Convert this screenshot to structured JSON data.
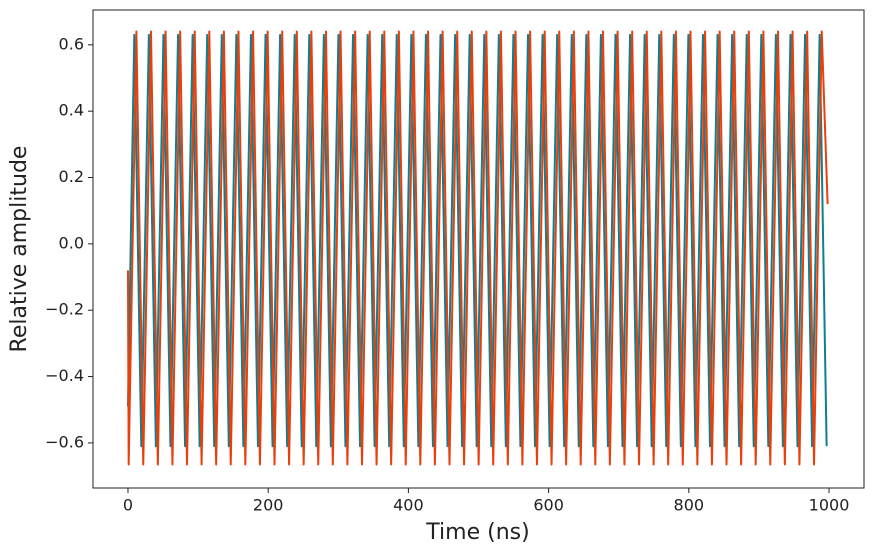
{
  "chart_data": {
    "type": "line",
    "xlabel": "Time (ns)",
    "ylabel": "Relative amplitude",
    "xlim": [
      -49.9,
      1049.9
    ],
    "ylim": [
      -0.736,
      0.705
    ],
    "xticks": [
      0,
      200,
      400,
      600,
      800,
      1000
    ],
    "yticks": [
      {
        "value": -0.6,
        "label": "−0.6"
      },
      {
        "value": -0.4,
        "label": "−0.4"
      },
      {
        "value": -0.2,
        "label": "−0.2"
      },
      {
        "value": 0,
        "label": "0.0"
      },
      {
        "value": 0.2,
        "label": "0.2"
      },
      {
        "value": 0.4,
        "label": "0.4"
      },
      {
        "value": 0.6,
        "label": "0.6"
      }
    ],
    "grid": false,
    "series": [
      {
        "color": "#0e7f93",
        "x": [
          0,
          9,
          19,
          29.8,
          39.8,
          50.6,
          60.6,
          71.4,
          81.4,
          92.2,
          102.2,
          113,
          123,
          133.8,
          143.8,
          154.6,
          164.6,
          175.4,
          185.4,
          196.2,
          206.2,
          217,
          227,
          237.8,
          247.8,
          258.6,
          268.6,
          279.4,
          289.4,
          300.2,
          310.2,
          321,
          331,
          341.8,
          351.8,
          362.6,
          372.6,
          383.4,
          393.4,
          404.2,
          414.2,
          425,
          435,
          445.8,
          455.8,
          466.6,
          476.6,
          487.4,
          497.4,
          508.2,
          518.2,
          529,
          539,
          549.8,
          559.8,
          570.6,
          580.6,
          591.4,
          601.4,
          612.2,
          622.2,
          633,
          643,
          653.8,
          663.8,
          674.6,
          684.6,
          695.4,
          705.4,
          716.2,
          726.2,
          737,
          747,
          757.8,
          767.8,
          778.6,
          788.6,
          799.4,
          809.4,
          820.2,
          830.2,
          841,
          851,
          861.8,
          871.8,
          882.6,
          892.6,
          903.4,
          913.4,
          924.2,
          934.2,
          945,
          955,
          965.8,
          975.8,
          986.6,
          996.6
        ],
        "values": [
          -0.49,
          0.63,
          -0.61,
          0.63,
          -0.61,
          0.63,
          -0.61,
          0.63,
          -0.61,
          0.63,
          -0.61,
          0.63,
          -0.61,
          0.63,
          -0.61,
          0.63,
          -0.61,
          0.63,
          -0.61,
          0.63,
          -0.61,
          0.63,
          -0.61,
          0.63,
          -0.61,
          0.63,
          -0.61,
          0.63,
          -0.61,
          0.63,
          -0.61,
          0.63,
          -0.61,
          0.63,
          -0.61,
          0.63,
          -0.61,
          0.63,
          -0.61,
          0.63,
          -0.61,
          0.63,
          -0.61,
          0.63,
          -0.61,
          0.63,
          -0.61,
          0.63,
          -0.61,
          0.63,
          -0.61,
          0.63,
          -0.61,
          0.63,
          -0.61,
          0.63,
          -0.61,
          0.63,
          -0.61,
          0.63,
          -0.61,
          0.63,
          -0.61,
          0.63,
          -0.61,
          0.63,
          -0.61,
          0.63,
          -0.61,
          0.63,
          -0.61,
          0.63,
          -0.61,
          0.63,
          -0.61,
          0.63,
          -0.61,
          0.63,
          -0.61,
          0.63,
          -0.61,
          0.63,
          -0.61,
          0.63,
          -0.61,
          0.63,
          -0.61,
          0.63,
          -0.61,
          0.63,
          -0.61,
          0.63,
          -0.61,
          0.63,
          -0.61,
          0.63,
          -0.61
        ]
      },
      {
        "color": "#e8400c",
        "x": [
          0,
          1,
          12,
          21.8,
          32.8,
          42.6,
          53.6,
          63.4,
          74.4,
          84.2,
          95.2,
          105,
          116,
          125.8,
          136.8,
          146.6,
          157.6,
          167.4,
          178.4,
          188.2,
          199.2,
          209,
          220,
          229.8,
          240.8,
          250.6,
          261.6,
          271.4,
          282.4,
          292.2,
          303.2,
          313,
          324,
          333.8,
          344.8,
          354.6,
          365.6,
          375.4,
          386.4,
          396.2,
          407.2,
          417,
          428,
          437.8,
          448.8,
          458.6,
          469.6,
          479.4,
          490.4,
          500.2,
          511.2,
          521,
          532,
          541.8,
          552.8,
          562.6,
          573.6,
          583.4,
          594.4,
          604.2,
          615.2,
          625,
          636,
          645.8,
          656.8,
          666.6,
          677.6,
          687.4,
          698.4,
          708.2,
          719.2,
          729,
          740,
          749.8,
          760.8,
          770.6,
          781.6,
          791.4,
          802.4,
          812.2,
          823.2,
          833,
          844,
          853.8,
          864.8,
          874.6,
          885.6,
          895.4,
          906.4,
          916.2,
          927.2,
          937,
          948,
          957.8,
          968.8,
          978.6,
          989.6,
          998
        ],
        "values": [
          -0.08,
          -0.665,
          0.64,
          -0.665,
          0.64,
          -0.665,
          0.64,
          -0.665,
          0.64,
          -0.665,
          0.64,
          -0.665,
          0.64,
          -0.665,
          0.64,
          -0.665,
          0.64,
          -0.665,
          0.64,
          -0.665,
          0.64,
          -0.665,
          0.64,
          -0.665,
          0.64,
          -0.665,
          0.64,
          -0.665,
          0.64,
          -0.665,
          0.64,
          -0.665,
          0.64,
          -0.665,
          0.64,
          -0.665,
          0.64,
          -0.665,
          0.64,
          -0.665,
          0.64,
          -0.665,
          0.64,
          -0.665,
          0.64,
          -0.665,
          0.64,
          -0.665,
          0.64,
          -0.665,
          0.64,
          -0.665,
          0.64,
          -0.665,
          0.64,
          -0.665,
          0.64,
          -0.665,
          0.64,
          -0.665,
          0.64,
          -0.665,
          0.64,
          -0.665,
          0.64,
          -0.665,
          0.64,
          -0.665,
          0.64,
          -0.665,
          0.64,
          -0.665,
          0.64,
          -0.665,
          0.64,
          -0.665,
          0.64,
          -0.665,
          0.64,
          -0.665,
          0.64,
          -0.665,
          0.64,
          -0.665,
          0.64,
          -0.665,
          0.64,
          -0.665,
          0.64,
          -0.665,
          0.64,
          -0.665,
          0.64,
          -0.665,
          0.64,
          -0.665,
          0.64,
          0.12
        ]
      }
    ]
  }
}
